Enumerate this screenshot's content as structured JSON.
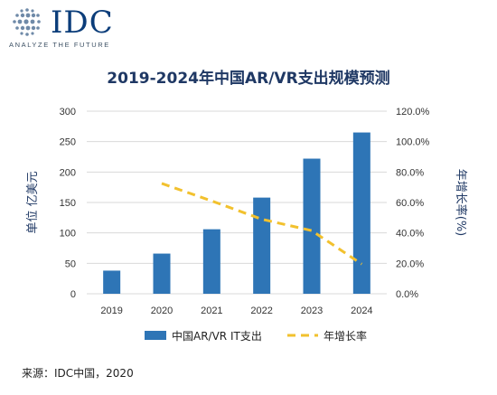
{
  "header": {
    "logo_text": "IDC",
    "tagline": "ANALYZE THE FUTURE",
    "logo_icon": "globe-icon"
  },
  "source": "来源：IDC中国，2020",
  "chart_data": {
    "type": "bar",
    "title": "2019-2024年中国AR/VR支出规模预测",
    "categories": [
      "2019",
      "2020",
      "2021",
      "2022",
      "2023",
      "2024"
    ],
    "ylabel": "单位 亿美元",
    "y2label": "年增长率(%)",
    "ylim": [
      0,
      300
    ],
    "y2lim": [
      0,
      120
    ],
    "yticks": [
      "0",
      "50",
      "100",
      "150",
      "200",
      "250",
      "300"
    ],
    "y2ticks": [
      "0.0%",
      "20.0%",
      "40.0%",
      "60.0%",
      "80.0%",
      "100.0%",
      "120.0%"
    ],
    "grid": true,
    "legend_position": "bottom",
    "colors": {
      "bar": "#2e75b6",
      "line": "#f2c12e",
      "grid": "#d9d9d9"
    },
    "series": [
      {
        "name": "中国AR/VR IT支出",
        "type": "bar",
        "axis": "left",
        "values": [
          38,
          66,
          106,
          158,
          222,
          265
        ]
      },
      {
        "name": "年增长率",
        "type": "line",
        "axis": "right",
        "style": "dashed",
        "values": [
          null,
          72.5,
          61.0,
          49.0,
          41.5,
          19.5
        ]
      }
    ]
  }
}
